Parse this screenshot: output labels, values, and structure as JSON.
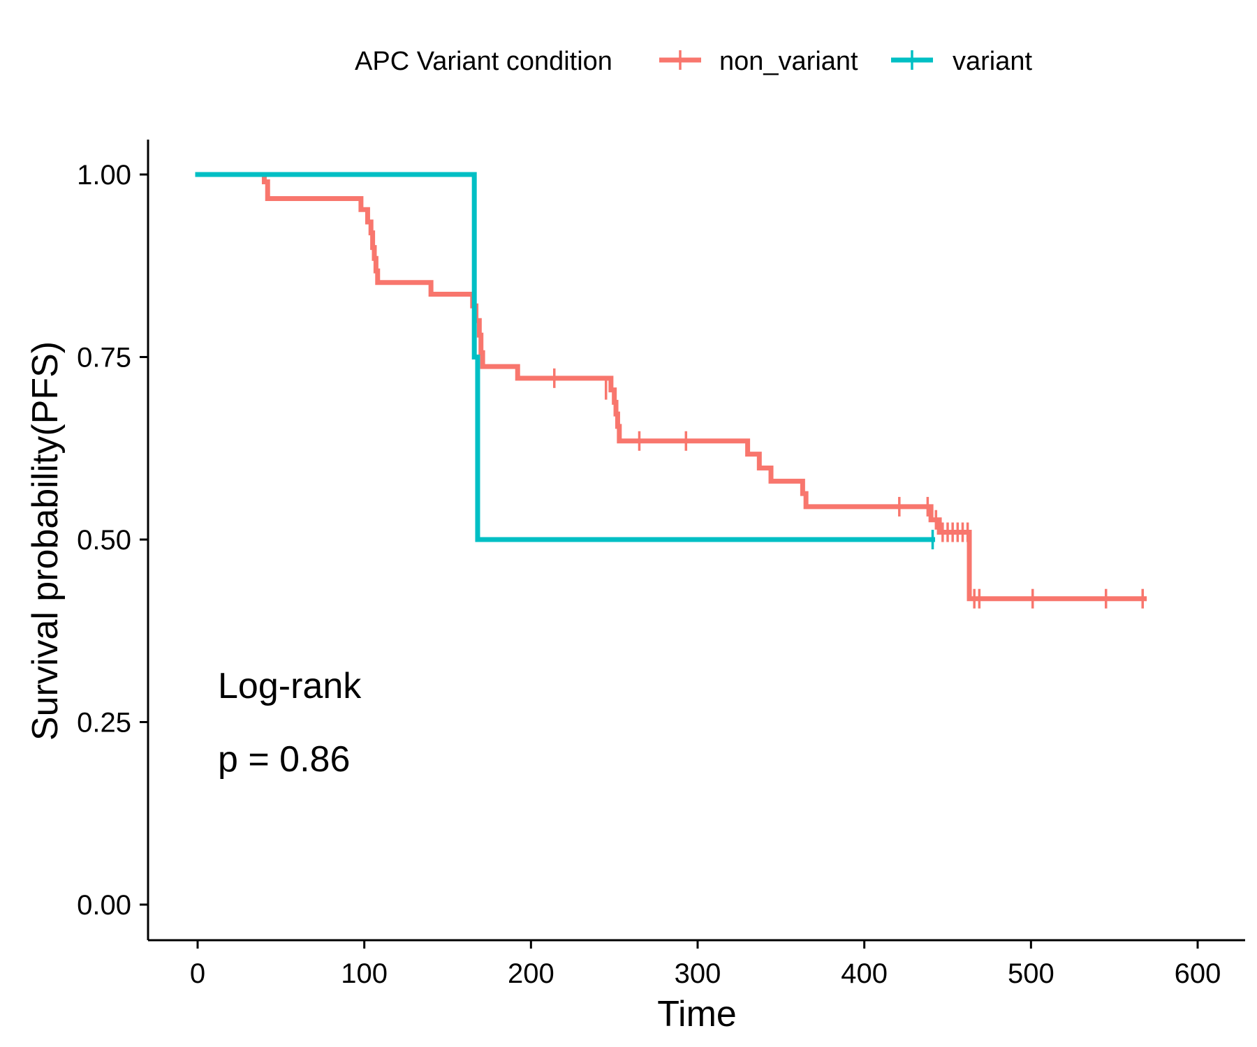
{
  "chart_data": {
    "type": "line",
    "subtype": "kaplan-meier",
    "title": "",
    "xlabel": "Time",
    "ylabel": "Survival probability(PFS)",
    "xlim": [
      -30,
      630
    ],
    "ylim": [
      -0.05,
      1.05
    ],
    "xticks": [
      0,
      100,
      200,
      300,
      400,
      500,
      600
    ],
    "yticks": [
      0.0,
      0.25,
      0.5,
      0.75,
      1.0
    ],
    "xtick_labels": [
      "0",
      "100",
      "200",
      "300",
      "400",
      "500",
      "600"
    ],
    "ytick_labels": [
      "0.00",
      "0.25",
      "0.50",
      "0.75",
      "1.00"
    ],
    "grid": false,
    "legend": {
      "position": "top",
      "title": "APC Variant condition"
    },
    "annotations": [
      {
        "text": "Log-rank",
        "x": 12,
        "y": 0.3
      },
      {
        "text": "p = 0.86",
        "x": 12,
        "y": 0.2
      }
    ],
    "series": [
      {
        "name": "non_variant",
        "color": "#F8766D",
        "steps": [
          [
            0,
            1.0
          ],
          [
            40,
            0.99
          ],
          [
            42,
            0.967
          ],
          [
            98,
            0.952
          ],
          [
            102,
            0.935
          ],
          [
            104,
            0.92
          ],
          [
            105,
            0.9
          ],
          [
            106,
            0.885
          ],
          [
            107,
            0.868
          ],
          [
            108,
            0.852
          ],
          [
            140,
            0.836
          ],
          [
            165,
            0.82
          ],
          [
            167,
            0.8
          ],
          [
            169,
            0.78
          ],
          [
            170,
            0.756
          ],
          [
            171,
            0.737
          ],
          [
            192,
            0.721
          ],
          [
            248,
            0.705
          ],
          [
            250,
            0.688
          ],
          [
            251,
            0.672
          ],
          [
            252,
            0.655
          ],
          [
            253,
            0.635
          ],
          [
            330,
            0.617
          ],
          [
            337,
            0.598
          ],
          [
            344,
            0.58
          ],
          [
            363,
            0.563
          ],
          [
            365,
            0.545
          ],
          [
            440,
            0.527
          ],
          [
            445,
            0.51
          ],
          [
            463,
            0.419
          ]
        ],
        "end_x": 568,
        "censor": [
          [
            214,
            0.721
          ],
          [
            245,
            0.705
          ],
          [
            265,
            0.635
          ],
          [
            293,
            0.635
          ],
          [
            421,
            0.545
          ],
          [
            438,
            0.545
          ],
          [
            443,
            0.527
          ],
          [
            447,
            0.51
          ],
          [
            450,
            0.51
          ],
          [
            453,
            0.51
          ],
          [
            456,
            0.51
          ],
          [
            459,
            0.51
          ],
          [
            462,
            0.51
          ],
          [
            466,
            0.419
          ],
          [
            469,
            0.419
          ],
          [
            501,
            0.419
          ],
          [
            545,
            0.419
          ],
          [
            567,
            0.419
          ]
        ]
      },
      {
        "name": "variant",
        "color": "#00BFC4",
        "steps": [
          [
            0,
            1.0
          ],
          [
            166,
            0.75
          ],
          [
            168,
            0.5
          ]
        ],
        "end_x": 441,
        "censor": [
          [
            441,
            0.5
          ]
        ]
      }
    ]
  }
}
